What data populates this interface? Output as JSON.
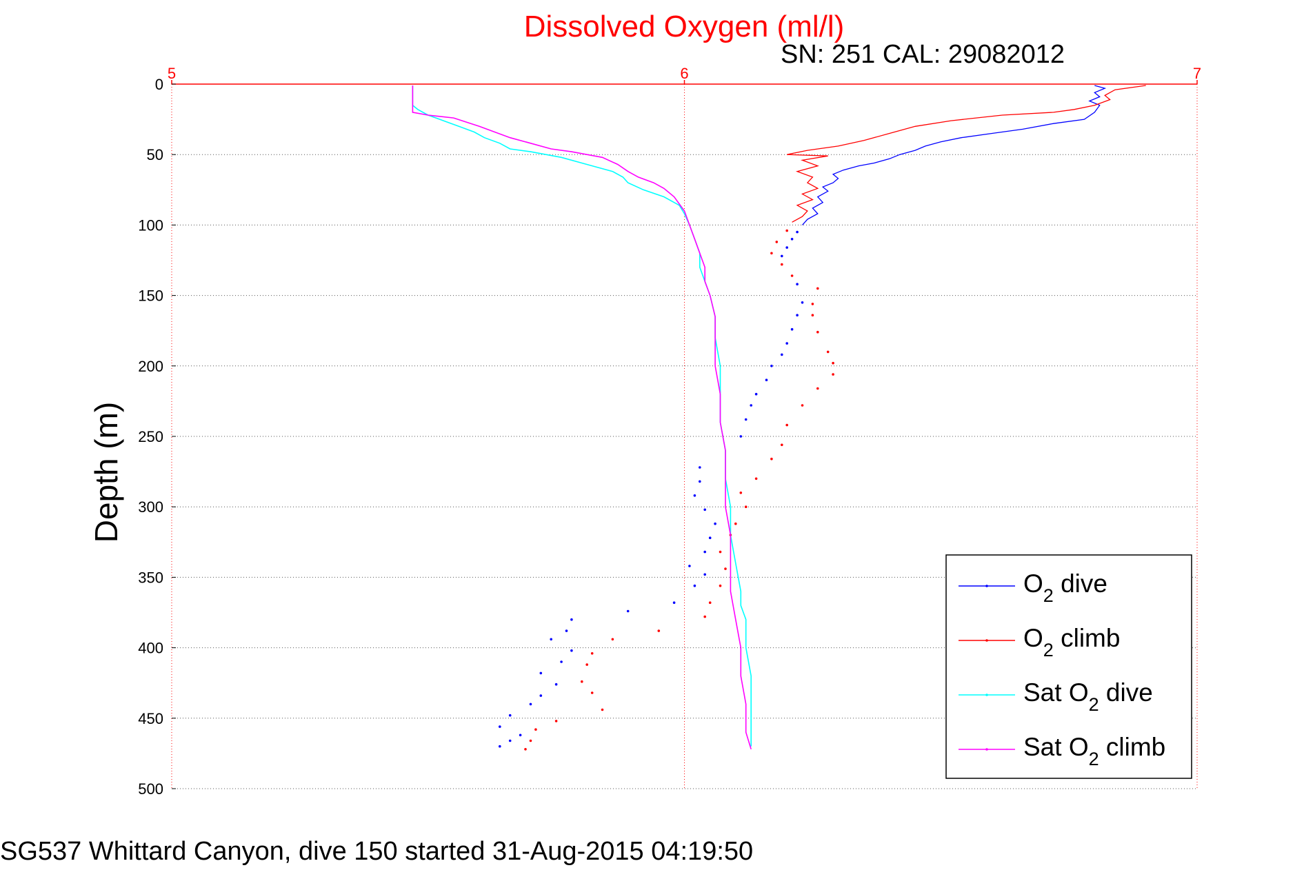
{
  "colors": {
    "o2_dive": "#0000ff",
    "o2_climb": "#ff0000",
    "sat_dive": "#00ffff",
    "sat_climb": "#ff00ff",
    "title": "#ff0000",
    "top_axis": "#ff0000",
    "grid": "#555555"
  },
  "chart_data": {
    "type": "line",
    "title": "Dissolved Oxygen (ml/l)",
    "subtitle": "SN: 251  CAL: 29082012",
    "ylabel": "Depth (m)",
    "xlabel": "",
    "footer": "SG537 Whittard Canyon, dive 150 started 31-Aug-2015 04:19:50",
    "xlim": [
      5,
      7
    ],
    "ylim": [
      0,
      500
    ],
    "y_reversed": true,
    "x_ticks": [
      "5",
      "6",
      "7"
    ],
    "y_ticks": [
      "0",
      "50",
      "100",
      "150",
      "200",
      "250",
      "300",
      "350",
      "400",
      "450",
      "500"
    ],
    "grid": true,
    "legend_position": "bottom-right",
    "series": [
      {
        "name": "O2 dive",
        "legend_main": "O",
        "legend_sub": "2",
        "legend_rest": " dive",
        "color_key": "o2_dive",
        "mode": "line-then-markers",
        "points": [
          [
            6.8,
            1
          ],
          [
            6.82,
            3
          ],
          [
            6.8,
            6
          ],
          [
            6.81,
            9
          ],
          [
            6.79,
            12
          ],
          [
            6.81,
            15
          ],
          [
            6.8,
            20
          ],
          [
            6.78,
            25
          ],
          [
            6.72,
            28
          ],
          [
            6.66,
            32
          ],
          [
            6.6,
            35
          ],
          [
            6.54,
            38
          ],
          [
            6.5,
            41
          ],
          [
            6.47,
            44
          ],
          [
            6.45,
            47
          ],
          [
            6.42,
            50
          ],
          [
            6.4,
            53
          ],
          [
            6.37,
            56
          ],
          [
            6.34,
            58
          ],
          [
            6.31,
            61
          ],
          [
            6.29,
            64
          ],
          [
            6.3,
            67
          ],
          [
            6.29,
            70
          ],
          [
            6.27,
            73
          ],
          [
            6.28,
            76
          ],
          [
            6.26,
            80
          ],
          [
            6.27,
            84
          ],
          [
            6.25,
            88
          ],
          [
            6.26,
            92
          ],
          [
            6.24,
            96
          ],
          [
            6.23,
            100
          ],
          [
            6.22,
            105
          ],
          [
            6.21,
            110
          ],
          [
            6.2,
            116
          ],
          [
            6.19,
            122
          ],
          [
            6.22,
            142
          ],
          [
            6.23,
            155
          ],
          [
            6.22,
            164
          ],
          [
            6.21,
            174
          ],
          [
            6.2,
            184
          ],
          [
            6.19,
            192
          ],
          [
            6.17,
            200
          ],
          [
            6.16,
            210
          ],
          [
            6.14,
            220
          ],
          [
            6.13,
            228
          ],
          [
            6.12,
            238
          ],
          [
            6.11,
            250
          ],
          [
            6.03,
            272
          ],
          [
            6.03,
            282
          ],
          [
            6.02,
            292
          ],
          [
            6.04,
            302
          ],
          [
            6.06,
            312
          ],
          [
            6.05,
            322
          ],
          [
            6.04,
            332
          ],
          [
            6.01,
            342
          ],
          [
            6.04,
            348
          ],
          [
            6.02,
            356
          ],
          [
            5.98,
            368
          ],
          [
            5.89,
            374
          ],
          [
            5.78,
            380
          ],
          [
            5.77,
            388
          ],
          [
            5.74,
            394
          ],
          [
            5.78,
            402
          ],
          [
            5.76,
            410
          ],
          [
            5.72,
            418
          ],
          [
            5.75,
            426
          ],
          [
            5.72,
            434
          ],
          [
            5.7,
            440
          ],
          [
            5.66,
            448
          ],
          [
            5.64,
            456
          ],
          [
            5.68,
            462
          ],
          [
            5.66,
            466
          ],
          [
            5.64,
            470
          ]
        ]
      },
      {
        "name": "O2 climb",
        "legend_main": "O",
        "legend_sub": "2",
        "legend_rest": " climb",
        "color_key": "o2_climb",
        "mode": "line-then-markers",
        "points": [
          [
            6.9,
            1
          ],
          [
            6.84,
            4
          ],
          [
            6.82,
            8
          ],
          [
            6.83,
            11
          ],
          [
            6.8,
            15
          ],
          [
            6.76,
            18
          ],
          [
            6.72,
            20
          ],
          [
            6.62,
            22
          ],
          [
            6.52,
            26
          ],
          [
            6.45,
            30
          ],
          [
            6.4,
            35
          ],
          [
            6.35,
            40
          ],
          [
            6.3,
            44
          ],
          [
            6.24,
            47
          ],
          [
            6.2,
            50
          ],
          [
            6.28,
            51
          ],
          [
            6.23,
            54
          ],
          [
            6.26,
            58
          ],
          [
            6.22,
            62
          ],
          [
            6.25,
            66
          ],
          [
            6.24,
            70
          ],
          [
            6.26,
            74
          ],
          [
            6.23,
            78
          ],
          [
            6.25,
            82
          ],
          [
            6.22,
            86
          ],
          [
            6.24,
            90
          ],
          [
            6.23,
            94
          ],
          [
            6.21,
            98
          ],
          [
            6.2,
            104
          ],
          [
            6.18,
            112
          ],
          [
            6.17,
            120
          ],
          [
            6.19,
            128
          ],
          [
            6.21,
            136
          ],
          [
            6.26,
            145
          ],
          [
            6.25,
            156
          ],
          [
            6.25,
            164
          ],
          [
            6.26,
            176
          ],
          [
            6.28,
            190
          ],
          [
            6.29,
            198
          ],
          [
            6.29,
            206
          ],
          [
            6.26,
            216
          ],
          [
            6.23,
            228
          ],
          [
            6.2,
            242
          ],
          [
            6.19,
            256
          ],
          [
            6.17,
            266
          ],
          [
            6.14,
            280
          ],
          [
            6.11,
            290
          ],
          [
            6.12,
            300
          ],
          [
            6.1,
            312
          ],
          [
            6.09,
            320
          ],
          [
            6.07,
            332
          ],
          [
            6.08,
            344
          ],
          [
            6.07,
            356
          ],
          [
            6.05,
            368
          ],
          [
            6.04,
            378
          ],
          [
            5.95,
            388
          ],
          [
            5.86,
            394
          ],
          [
            5.82,
            404
          ],
          [
            5.81,
            412
          ],
          [
            5.8,
            424
          ],
          [
            5.82,
            432
          ],
          [
            5.84,
            444
          ],
          [
            5.75,
            452
          ],
          [
            5.71,
            458
          ],
          [
            5.7,
            466
          ],
          [
            5.69,
            472
          ]
        ]
      },
      {
        "name": "Sat O2 dive",
        "legend_main": "Sat O",
        "legend_sub": "2",
        "legend_rest": " dive",
        "color_key": "sat_dive",
        "mode": "line",
        "points": [
          [
            5.47,
            1
          ],
          [
            5.47,
            5
          ],
          [
            5.47,
            10
          ],
          [
            5.47,
            15
          ],
          [
            5.48,
            18
          ],
          [
            5.5,
            22
          ],
          [
            5.53,
            26
          ],
          [
            5.56,
            30
          ],
          [
            5.59,
            34
          ],
          [
            5.61,
            38
          ],
          [
            5.64,
            42
          ],
          [
            5.66,
            46
          ],
          [
            5.7,
            48
          ],
          [
            5.73,
            50
          ],
          [
            5.76,
            52
          ],
          [
            5.8,
            56
          ],
          [
            5.83,
            59
          ],
          [
            5.86,
            62
          ],
          [
            5.88,
            66
          ],
          [
            5.89,
            70
          ],
          [
            5.92,
            75
          ],
          [
            5.96,
            80
          ],
          [
            5.99,
            86
          ],
          [
            6.0,
            92
          ],
          [
            6.01,
            100
          ],
          [
            6.02,
            110
          ],
          [
            6.03,
            120
          ],
          [
            6.03,
            130
          ],
          [
            6.04,
            140
          ],
          [
            6.05,
            150
          ],
          [
            6.06,
            165
          ],
          [
            6.06,
            180
          ],
          [
            6.07,
            200
          ],
          [
            6.07,
            220
          ],
          [
            6.07,
            240
          ],
          [
            6.08,
            260
          ],
          [
            6.08,
            280
          ],
          [
            6.09,
            300
          ],
          [
            6.09,
            320
          ],
          [
            6.1,
            340
          ],
          [
            6.11,
            360
          ],
          [
            6.11,
            370
          ],
          [
            6.12,
            380
          ],
          [
            6.12,
            400
          ],
          [
            6.13,
            420
          ],
          [
            6.13,
            440
          ],
          [
            6.13,
            460
          ],
          [
            6.13,
            470
          ]
        ]
      },
      {
        "name": "Sat O2 climb",
        "legend_main": "Sat O",
        "legend_sub": "2",
        "legend_rest": " climb",
        "color_key": "sat_climb",
        "mode": "line",
        "points": [
          [
            5.47,
            1
          ],
          [
            5.47,
            5
          ],
          [
            5.47,
            10
          ],
          [
            5.47,
            15
          ],
          [
            5.47,
            20
          ],
          [
            5.5,
            22
          ],
          [
            5.55,
            24
          ],
          [
            5.6,
            30
          ],
          [
            5.63,
            34
          ],
          [
            5.66,
            38
          ],
          [
            5.7,
            42
          ],
          [
            5.74,
            46
          ],
          [
            5.78,
            48
          ],
          [
            5.81,
            50
          ],
          [
            5.84,
            52
          ],
          [
            5.87,
            57
          ],
          [
            5.89,
            62
          ],
          [
            5.91,
            66
          ],
          [
            5.94,
            70
          ],
          [
            5.96,
            74
          ],
          [
            5.98,
            80
          ],
          [
            6.0,
            90
          ],
          [
            6.01,
            100
          ],
          [
            6.02,
            110
          ],
          [
            6.03,
            120
          ],
          [
            6.04,
            130
          ],
          [
            6.04,
            140
          ],
          [
            6.05,
            150
          ],
          [
            6.06,
            165
          ],
          [
            6.06,
            180
          ],
          [
            6.06,
            200
          ],
          [
            6.07,
            220
          ],
          [
            6.07,
            240
          ],
          [
            6.08,
            260
          ],
          [
            6.08,
            280
          ],
          [
            6.08,
            300
          ],
          [
            6.09,
            320
          ],
          [
            6.09,
            340
          ],
          [
            6.09,
            360
          ],
          [
            6.1,
            380
          ],
          [
            6.11,
            400
          ],
          [
            6.11,
            420
          ],
          [
            6.12,
            440
          ],
          [
            6.12,
            460
          ],
          [
            6.13,
            472
          ]
        ]
      }
    ]
  }
}
